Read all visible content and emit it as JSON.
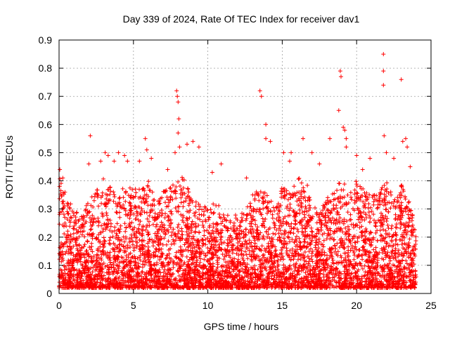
{
  "chart_data": {
    "type": "scatter",
    "title": "Day 339 of 2024, Rate Of TEC Index for receiver dav1",
    "xlabel": "GPS time / hours",
    "ylabel": "ROTI / TECUs",
    "xlim": [
      0,
      25
    ],
    "ylim": [
      0,
      0.9
    ],
    "x_ticks": [
      0,
      5,
      10,
      15,
      20,
      25
    ],
    "y_ticks": [
      0,
      0.1,
      0.2,
      0.3,
      0.4,
      0.5,
      0.6,
      0.7,
      0.8,
      0.9
    ],
    "grid": true,
    "marker": "+",
    "color": "#ff0000",
    "dense_profile": {
      "x_start": 0,
      "x_end": 24,
      "upper_envelope": [
        [
          0.0,
          0.43
        ],
        [
          0.5,
          0.34
        ],
        [
          1.0,
          0.3
        ],
        [
          1.5,
          0.28
        ],
        [
          2.0,
          0.33
        ],
        [
          2.5,
          0.36
        ],
        [
          3.0,
          0.42
        ],
        [
          3.5,
          0.37
        ],
        [
          4.0,
          0.35
        ],
        [
          4.5,
          0.4
        ],
        [
          5.0,
          0.38
        ],
        [
          5.5,
          0.37
        ],
        [
          6.0,
          0.4
        ],
        [
          6.5,
          0.35
        ],
        [
          7.0,
          0.37
        ],
        [
          7.5,
          0.4
        ],
        [
          8.0,
          0.43
        ],
        [
          8.5,
          0.4
        ],
        [
          9.0,
          0.32
        ],
        [
          9.5,
          0.33
        ],
        [
          10.0,
          0.3
        ],
        [
          10.5,
          0.33
        ],
        [
          11.0,
          0.29
        ],
        [
          11.5,
          0.27
        ],
        [
          12.0,
          0.28
        ],
        [
          12.5,
          0.3
        ],
        [
          13.0,
          0.35
        ],
        [
          13.5,
          0.38
        ],
        [
          14.0,
          0.35
        ],
        [
          14.5,
          0.33
        ],
        [
          15.0,
          0.38
        ],
        [
          15.5,
          0.36
        ],
        [
          16.0,
          0.41
        ],
        [
          16.5,
          0.42
        ],
        [
          17.0,
          0.32
        ],
        [
          17.5,
          0.3
        ],
        [
          18.0,
          0.34
        ],
        [
          18.5,
          0.38
        ],
        [
          19.0,
          0.42
        ],
        [
          19.5,
          0.38
        ],
        [
          20.0,
          0.4
        ],
        [
          20.5,
          0.37
        ],
        [
          21.0,
          0.35
        ],
        [
          21.5,
          0.38
        ],
        [
          22.0,
          0.4
        ],
        [
          22.5,
          0.33
        ],
        [
          23.0,
          0.4
        ],
        [
          23.5,
          0.33
        ],
        [
          24.0,
          0.24
        ]
      ]
    },
    "outliers": [
      [
        0.05,
        0.44
      ],
      [
        0.25,
        0.41
      ],
      [
        2.1,
        0.56
      ],
      [
        2.0,
        0.46
      ],
      [
        2.8,
        0.47
      ],
      [
        3.1,
        0.5
      ],
      [
        3.3,
        0.49
      ],
      [
        3.7,
        0.47
      ],
      [
        4.0,
        0.5
      ],
      [
        4.4,
        0.49
      ],
      [
        4.6,
        0.47
      ],
      [
        5.4,
        0.47
      ],
      [
        5.8,
        0.55
      ],
      [
        5.9,
        0.51
      ],
      [
        6.2,
        0.48
      ],
      [
        7.3,
        0.44
      ],
      [
        7.8,
        0.5
      ],
      [
        7.9,
        0.72
      ],
      [
        7.95,
        0.7
      ],
      [
        8.0,
        0.68
      ],
      [
        8.05,
        0.62
      ],
      [
        8.0,
        0.57
      ],
      [
        8.1,
        0.52
      ],
      [
        8.6,
        0.53
      ],
      [
        9.0,
        0.54
      ],
      [
        9.4,
        0.52
      ],
      [
        10.3,
        0.43
      ],
      [
        10.9,
        0.46
      ],
      [
        12.6,
        0.41
      ],
      [
        13.5,
        0.72
      ],
      [
        13.6,
        0.7
      ],
      [
        13.9,
        0.6
      ],
      [
        13.9,
        0.55
      ],
      [
        14.2,
        0.54
      ],
      [
        15.1,
        0.5
      ],
      [
        15.6,
        0.5
      ],
      [
        15.5,
        0.47
      ],
      [
        16.4,
        0.55
      ],
      [
        17.0,
        0.5
      ],
      [
        17.5,
        0.46
      ],
      [
        18.2,
        0.55
      ],
      [
        18.8,
        0.65
      ],
      [
        18.9,
        0.79
      ],
      [
        18.95,
        0.77
      ],
      [
        19.1,
        0.59
      ],
      [
        19.2,
        0.58
      ],
      [
        19.3,
        0.55
      ],
      [
        19.3,
        0.52
      ],
      [
        20.0,
        0.49
      ],
      [
        20.4,
        0.44
      ],
      [
        20.9,
        0.48
      ],
      [
        21.8,
        0.85
      ],
      [
        21.8,
        0.79
      ],
      [
        21.8,
        0.74
      ],
      [
        21.85,
        0.56
      ],
      [
        22.0,
        0.5
      ],
      [
        22.5,
        0.48
      ],
      [
        23.0,
        0.76
      ],
      [
        23.1,
        0.54
      ],
      [
        23.3,
        0.55
      ],
      [
        23.4,
        0.52
      ],
      [
        23.6,
        0.45
      ]
    ]
  }
}
